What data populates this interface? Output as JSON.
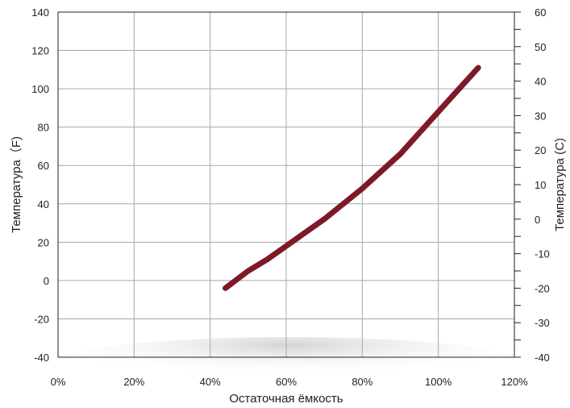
{
  "chart_data": {
    "type": "line",
    "title": "",
    "xlabel": "Остаточная ёмкость",
    "ylabel_left": "Температура（F)",
    "ylabel_right": "Температура (C)",
    "xlim": [
      0,
      120
    ],
    "ylim_left": [
      -40,
      140
    ],
    "ylim_right": [
      -40,
      60
    ],
    "x_tick_labels": [
      "0%",
      "20%",
      "40%",
      "60%",
      "80%",
      "100%",
      "120%"
    ],
    "y_left_tick_labels": [
      "140",
      "120",
      "100",
      "80",
      "60",
      "40",
      "20",
      "0",
      "-20",
      "-40"
    ],
    "y_right_tick_labels": [
      "60",
      "50",
      "40",
      "30",
      "20",
      "10",
      "0",
      "-10",
      "-20",
      "-30",
      "-40"
    ],
    "grid": true,
    "colors": {
      "line": "#7d1a2a",
      "grid": "#a8a8a8",
      "axis": "#222222",
      "shadow": "#d9d9d9"
    },
    "series": [
      {
        "x": [
          44,
          50,
          55,
          60,
          65,
          70,
          75,
          80,
          85,
          90,
          95,
          100,
          105,
          110.5
        ],
        "y": [
          -4,
          5,
          11,
          18,
          25,
          32,
          40,
          48,
          57,
          66,
          77,
          88,
          99,
          111
        ]
      }
    ]
  }
}
